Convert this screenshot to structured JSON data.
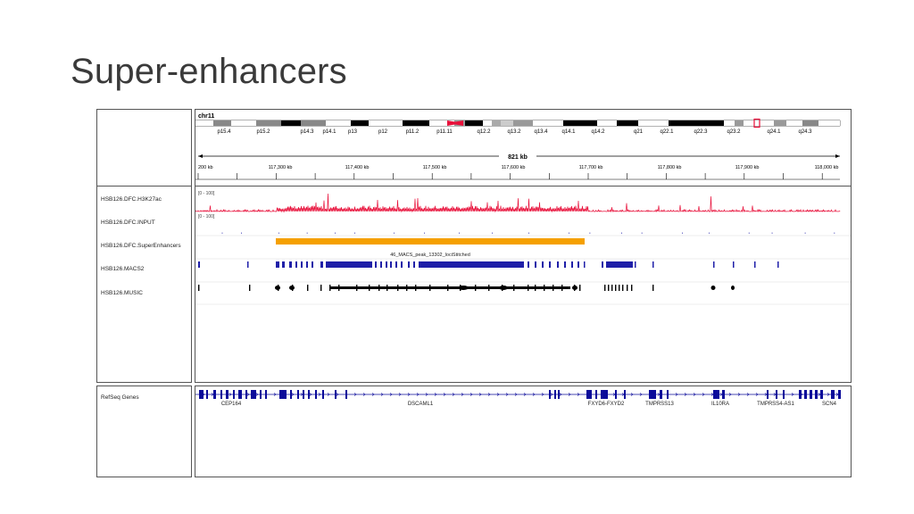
{
  "slide": {
    "title": "Super-enhancers"
  },
  "igv": {
    "chromosome": "chr11",
    "bands": [
      "p15.4",
      "p15.2",
      "p14.3",
      "p14.1",
      "p13",
      "p12",
      "p11.2",
      "p11.11",
      "q12.2",
      "q13.2",
      "q13.4",
      "q14.1",
      "q14.2",
      "q21",
      "q22.1",
      "q22.3",
      "q23.2",
      "q24.1",
      "q24.3"
    ],
    "span_label": "821 kb",
    "ruler_ticks": [
      "200 kb",
      "117,300 kb",
      "117,400 kb",
      "117,500 kb",
      "117,600 kb",
      "117,700 kb",
      "117,800 kb",
      "117,900 kb",
      "118,000 kb"
    ],
    "tracks": [
      {
        "name": "HSB126.DFC.H3K27ac",
        "range": "[0 - 100]"
      },
      {
        "name": "HSB126.DFC.INPUT",
        "range": "[0 - 100]"
      },
      {
        "name": "HSB126.DFC.SuperEnhancers",
        "feature_label": "46_MACS_peak_13302_lociStitched"
      },
      {
        "name": "HSB126.MACS2"
      },
      {
        "name": "HSB126.MUSIC"
      }
    ],
    "refseq": {
      "name": "RefSeq Genes",
      "genes": [
        "CEP164",
        "DSCAML1",
        "FXYD6-FXYD2",
        "TMPRSS13",
        "IL10RA",
        "TMPRSS4-AS1",
        "SCN4"
      ]
    },
    "colors": {
      "signal": "#e8103a",
      "superenhancer": "#f5a000",
      "peaks": "#1f1fa8",
      "genes": "#0b0b9a",
      "music": "#000000"
    }
  }
}
